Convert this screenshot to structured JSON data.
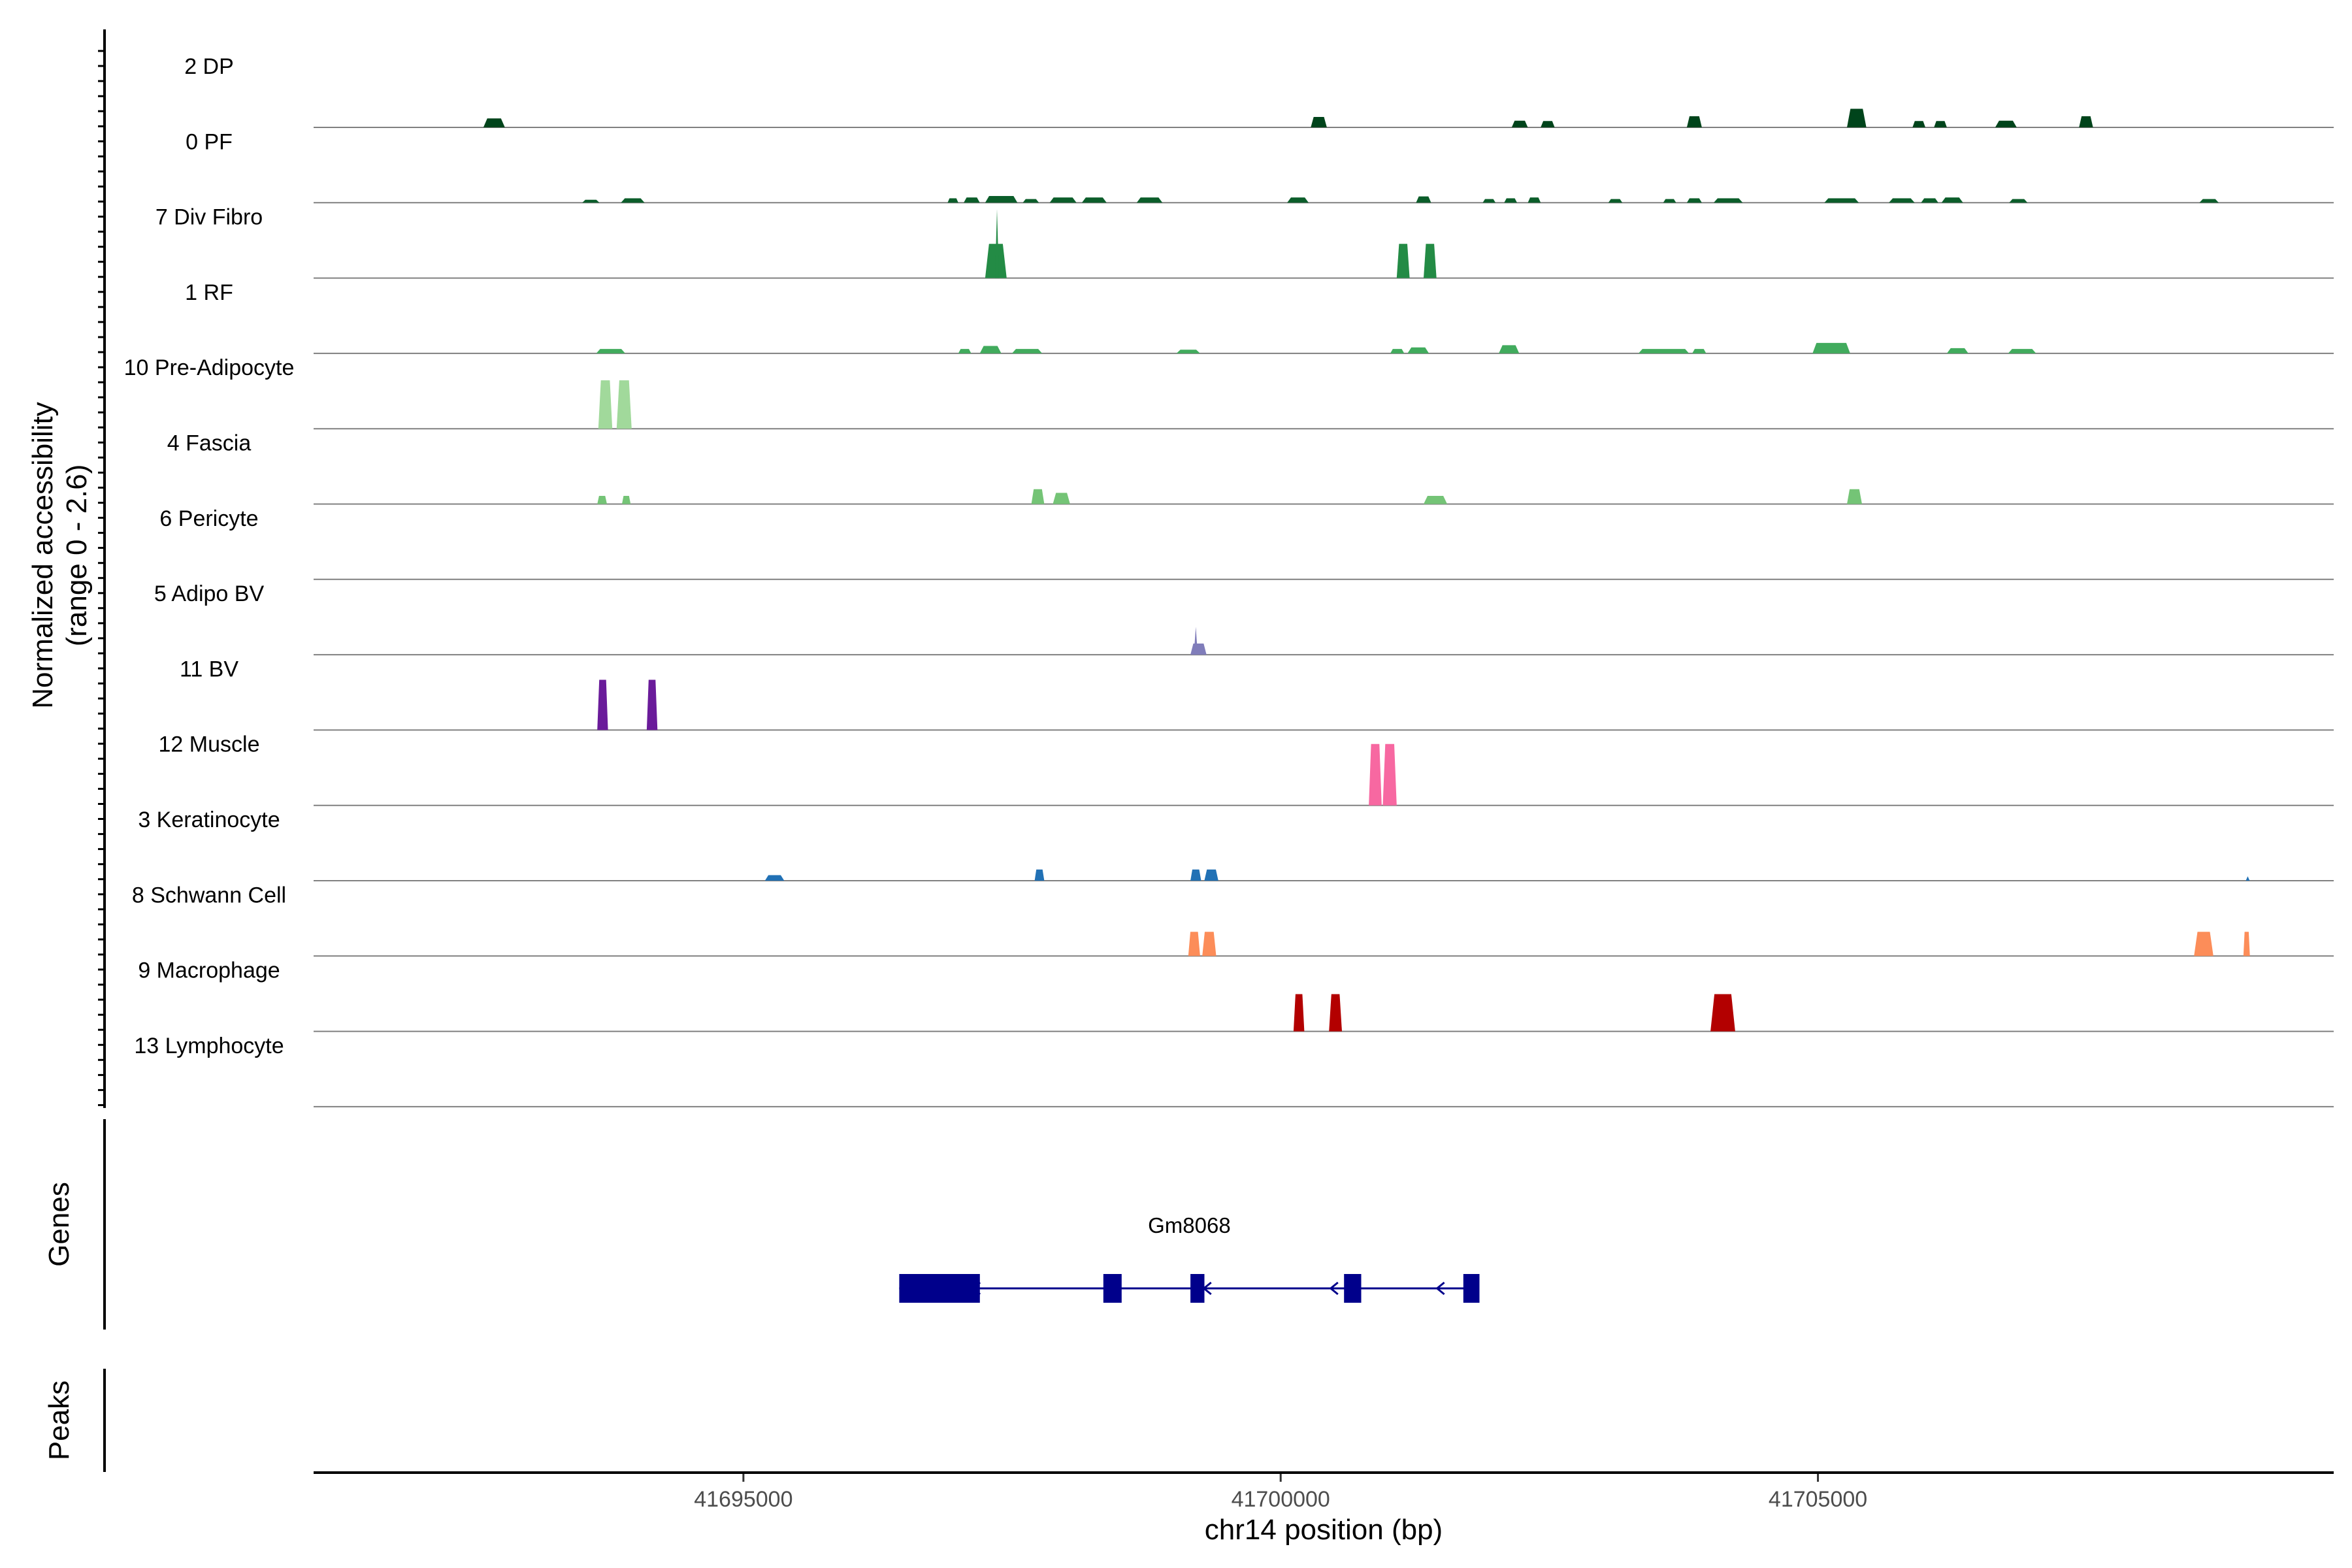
{
  "chart_data": {
    "type": "area",
    "title": "",
    "ylabel_line1": "Normalized accessibility",
    "ylabel_line2": "(range 0 - 2.6)",
    "yrange": [
      0,
      2.6
    ],
    "xlabel": "chr14 position (bp)",
    "xlim": [
      41691000,
      41709800
    ],
    "xticks": [
      41695000,
      41700000,
      41705000
    ],
    "xtick_labels": [
      "41695000",
      "41700000",
      "41705000"
    ],
    "tracks": [
      {
        "name": "2 DP",
        "color": "#00441B",
        "peaks": [
          [
            41692580,
            41692780,
            0.24
          ],
          [
            41700280,
            41700430,
            0.28
          ],
          [
            41702150,
            41702300,
            0.18
          ],
          [
            41702420,
            41702550,
            0.17
          ],
          [
            41703780,
            41703920,
            0.3
          ],
          [
            41705270,
            41705450,
            0.5
          ],
          [
            41705880,
            41706000,
            0.17
          ],
          [
            41706080,
            41706200,
            0.17
          ],
          [
            41706650,
            41706850,
            0.18
          ],
          [
            41707430,
            41707560,
            0.3
          ]
        ]
      },
      {
        "name": "0 PF",
        "color": "#0B5D2A",
        "peaks": [
          [
            41693500,
            41693660,
            0.08
          ],
          [
            41693860,
            41694080,
            0.12
          ],
          [
            41696900,
            41697000,
            0.12
          ],
          [
            41697050,
            41697200,
            0.14
          ],
          [
            41697250,
            41697550,
            0.18
          ],
          [
            41697600,
            41697750,
            0.1
          ],
          [
            41697850,
            41698100,
            0.14
          ],
          [
            41698150,
            41698380,
            0.14
          ],
          [
            41698660,
            41698900,
            0.14
          ],
          [
            41700060,
            41700260,
            0.14
          ],
          [
            41701260,
            41701400,
            0.17
          ],
          [
            41701880,
            41702000,
            0.1
          ],
          [
            41702080,
            41702200,
            0.12
          ],
          [
            41702300,
            41702420,
            0.14
          ],
          [
            41703050,
            41703180,
            0.1
          ],
          [
            41703560,
            41703680,
            0.1
          ],
          [
            41703780,
            41703920,
            0.12
          ],
          [
            41704030,
            41704300,
            0.12
          ],
          [
            41705060,
            41705380,
            0.12
          ],
          [
            41705660,
            41705900,
            0.12
          ],
          [
            41705960,
            41706120,
            0.12
          ],
          [
            41706150,
            41706350,
            0.14
          ],
          [
            41706780,
            41706950,
            0.1
          ],
          [
            41708550,
            41708730,
            0.1
          ]
        ]
      },
      {
        "name": "7 Div Fibro",
        "color": "#238B45",
        "spikes": [
          [
            41697360,
            1.85
          ]
        ],
        "peaks": [
          [
            41697250,
            41697450,
            0.92
          ],
          [
            41701080,
            41701200,
            0.92
          ],
          [
            41701330,
            41701450,
            0.92
          ]
        ]
      },
      {
        "name": "1 RF",
        "color": "#41AB5D",
        "peaks": [
          [
            41693630,
            41693900,
            0.12
          ],
          [
            41697000,
            41697120,
            0.12
          ],
          [
            41697200,
            41697400,
            0.2
          ],
          [
            41697500,
            41697780,
            0.12
          ],
          [
            41699030,
            41699250,
            0.1
          ],
          [
            41701020,
            41701150,
            0.12
          ],
          [
            41701180,
            41701380,
            0.16
          ],
          [
            41702030,
            41702220,
            0.22
          ],
          [
            41703330,
            41703800,
            0.12
          ],
          [
            41703830,
            41703960,
            0.12
          ],
          [
            41704950,
            41705300,
            0.28
          ],
          [
            41706200,
            41706400,
            0.14
          ],
          [
            41706770,
            41707030,
            0.12
          ]
        ]
      },
      {
        "name": "10 Pre-Adipocyte",
        "color": "#A1D99B",
        "peaks": [
          [
            41693650,
            41693780,
            1.3
          ],
          [
            41693820,
            41693960,
            1.3
          ]
        ]
      },
      {
        "name": "4 Fascia",
        "color": "#74C476",
        "peaks": [
          [
            41693640,
            41693730,
            0.22
          ],
          [
            41693870,
            41693950,
            0.22
          ],
          [
            41697680,
            41697800,
            0.4
          ],
          [
            41697880,
            41698040,
            0.3
          ],
          [
            41701330,
            41701550,
            0.22
          ],
          [
            41705270,
            41705410,
            0.4
          ]
        ]
      },
      {
        "name": "6 Pericyte",
        "color": "#9E9AC8",
        "peaks": []
      },
      {
        "name": "5 Adipo BV",
        "color": "#807DBA",
        "spikes": [
          [
            41699210,
            0.75
          ]
        ],
        "peaks": [
          [
            41699160,
            41699310,
            0.3
          ]
        ]
      },
      {
        "name": "11 BV",
        "color": "#6A1B9A",
        "peaks": [
          [
            41693640,
            41693740,
            1.35
          ],
          [
            41694100,
            41694200,
            1.35
          ]
        ]
      },
      {
        "name": "12 Muscle",
        "color": "#F768A1",
        "peaks": [
          [
            41700820,
            41700940,
            1.65
          ],
          [
            41700950,
            41701080,
            1.65
          ]
        ]
      },
      {
        "name": "3 Keratinocyte",
        "color": "#2171B5",
        "spikes": [
          [
            41709000,
            0.12
          ]
        ],
        "peaks": [
          [
            41695200,
            41695380,
            0.15
          ],
          [
            41697710,
            41697800,
            0.3
          ],
          [
            41699160,
            41699260,
            0.3
          ],
          [
            41699290,
            41699420,
            0.3
          ]
        ]
      },
      {
        "name": "8 Schwann Cell",
        "color": "#FC8D59",
        "peaks": [
          [
            41699140,
            41699250,
            0.65
          ],
          [
            41699270,
            41699400,
            0.65
          ],
          [
            41708500,
            41708680,
            0.65
          ],
          [
            41708960,
            41709020,
            0.65
          ]
        ]
      },
      {
        "name": "9 Macrophage",
        "color": "#B30000",
        "peaks": [
          [
            41700120,
            41700220,
            1.0
          ],
          [
            41700450,
            41700570,
            1.0
          ],
          [
            41704000,
            41704230,
            1.0
          ]
        ]
      },
      {
        "name": "13 Lymphocyte",
        "color": "#9E9AC8",
        "peaks": []
      }
    ],
    "gene_panel_title": "Genes",
    "peaks_panel_title": "Peaks",
    "gene": {
      "name": "Gm8068",
      "color": "#00008B",
      "start": 41696450,
      "end": 41701850,
      "strand": "-",
      "exons": [
        [
          41696450,
          41697200,
          "utr"
        ],
        [
          41698350,
          41698520,
          "cds"
        ],
        [
          41699160,
          41699290,
          "cds"
        ],
        [
          41700590,
          41700750,
          "cds"
        ],
        [
          41701700,
          41701850,
          "cds"
        ]
      ],
      "arrows": [
        41697160,
        41699310,
        41700490,
        41701480
      ]
    }
  }
}
